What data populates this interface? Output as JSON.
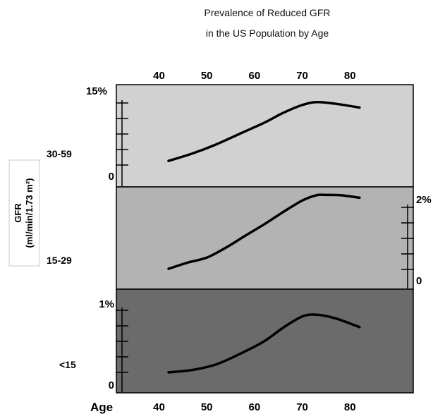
{
  "chart_data": {
    "type": "line",
    "title": [
      "Prevalence of Reduced GFR",
      "in the US Population by Age"
    ],
    "ylabel": [
      "GFR",
      "(ml/min/1.73 m²)"
    ],
    "xlabel": "Age",
    "x_ticks": [
      40,
      50,
      60,
      70,
      80
    ],
    "xlim": [
      35,
      92
    ],
    "panels": [
      {
        "label": "30-59",
        "color": "#d1d1d1",
        "ylim": [
          0,
          15
        ],
        "y_top_label": "15%",
        "y_bottom_label": "0",
        "axis_side": "left",
        "x": [
          42,
          47,
          52,
          57,
          62,
          66,
          70,
          73,
          77,
          82
        ],
        "values": [
          1.0,
          2.8,
          5.0,
          7.6,
          10.2,
          12.6,
          14.5,
          15.2,
          14.8,
          13.9
        ]
      },
      {
        "label": "15-29",
        "color": "#b3b3b3",
        "ylim": [
          0,
          2
        ],
        "y_top_label": "2%",
        "y_bottom_label": "0",
        "axis_side": "right",
        "x": [
          42,
          46,
          50,
          54,
          58,
          62,
          66,
          70,
          73,
          75,
          78,
          82
        ],
        "values": [
          0.02,
          0.22,
          0.38,
          0.7,
          1.08,
          1.45,
          1.85,
          2.22,
          2.39,
          2.4,
          2.39,
          2.31
        ]
      },
      {
        "label": "<15",
        "color": "#6b6b6b",
        "ylim": [
          0,
          1
        ],
        "y_top_label": "1%",
        "y_bottom_label": "0",
        "axis_side": "left",
        "x": [
          42,
          47,
          52,
          57,
          62,
          66,
          70,
          73,
          77,
          82
        ],
        "values": [
          0.0,
          0.04,
          0.13,
          0.3,
          0.5,
          0.72,
          0.9,
          0.93,
          0.87,
          0.73
        ]
      }
    ]
  }
}
